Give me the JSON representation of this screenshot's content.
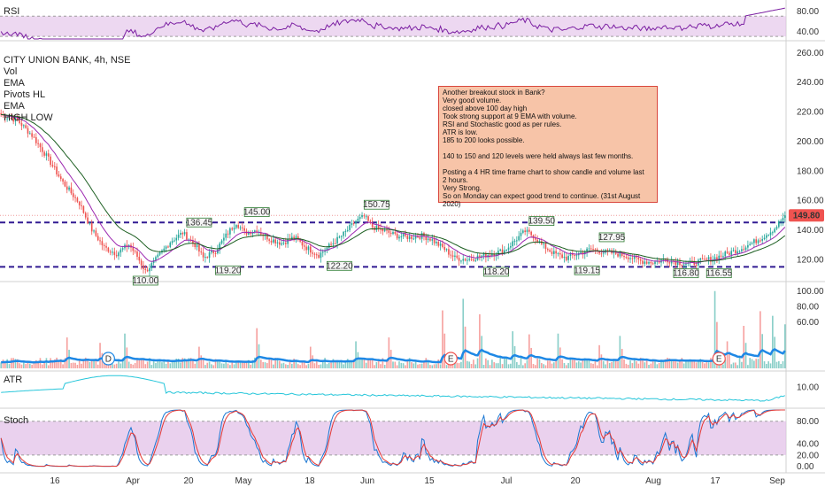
{
  "colors": {
    "up": "#26a69a",
    "down": "#ef5350",
    "ema_fast": "#9c27b0",
    "ema_slow": "#1b5e20",
    "level_line": "#311b92",
    "rsi": "#7b1fa2",
    "band": "#e1bee7",
    "atr": "#26c6da",
    "stoch_k": "#1976d2",
    "stoch_d": "#e53935",
    "vol_ma": "#1e88e5",
    "label_bg": "#f5f5f5",
    "last_price_bg": "#ef5350",
    "annot_bg": "#f7c4a8",
    "annot_border": "#d9473d"
  },
  "legend": {
    "title": "CITY UNION BANK, 4h, NSE",
    "indicators": [
      "Vol",
      "EMA",
      "Pivots HL",
      "EMA",
      "HIGH LOW"
    ]
  },
  "panes": {
    "rsi": {
      "label": "RSI",
      "ticks": [
        "80.00",
        "40.00"
      ]
    },
    "atr": {
      "label": "ATR",
      "ticks": [
        "10.00"
      ]
    },
    "stoch": {
      "label": "Stoch",
      "ticks": [
        "80.00",
        "40.00",
        "20.00",
        "0.00"
      ]
    }
  },
  "price_ticks": [
    "260.00",
    "240.00",
    "220.00",
    "200.00",
    "180.00",
    "160.00",
    "140.00",
    "120.00"
  ],
  "volume_ticks": [
    "100.00",
    "80.00",
    "60.00"
  ],
  "last_price": "149.80",
  "x_labels": [
    "16",
    "Apr",
    "20",
    "May",
    "18",
    "Jun",
    "15",
    "Jul",
    "20",
    "Aug",
    "17",
    "Sep"
  ],
  "annotation": {
    "lines": [
      "Another breakout stock in Bank?",
      "Very good volume.",
      "closed above 100 day high",
      "Took strong support at 9 EMA with volume.",
      "RSI and Stochastic good as per rules.",
      "ATR is low.",
      "185 to 200 looks possible.",
      "",
      "140 to 150 and 120 levels were held always last few months.",
      "",
      "Posting a 4 HR time frame chart to show candle and volume last",
      "2 hours.",
      "Very Strong.",
      "So on Monday can expect good trend to continue. (31st August",
      "2020)"
    ]
  },
  "event_markers": [
    "D",
    "E",
    "E"
  ],
  "chart_data": {
    "type": "candlestick",
    "levels": [
      145,
      115
    ],
    "price_range": [
      105,
      268
    ],
    "pivot_labels": [
      {
        "text": "110.00",
        "date": "late Mar"
      },
      {
        "text": "136.45",
        "date": "mid Apr"
      },
      {
        "text": "119.20",
        "date": "late Apr"
      },
      {
        "text": "145.00",
        "date": "early May"
      },
      {
        "text": "122.20",
        "date": "late May"
      },
      {
        "text": "150.75",
        "date": "early Jun"
      },
      {
        "text": "118.20",
        "date": "late Jun"
      },
      {
        "text": "139.50",
        "date": "mid Jul"
      },
      {
        "text": "119.15",
        "date": "late Jul"
      },
      {
        "text": "127.95",
        "date": "early Aug"
      },
      {
        "text": "116.80",
        "date": "mid Aug"
      },
      {
        "text": "116.55",
        "date": "late Aug"
      }
    ],
    "price_path": [
      [
        0,
        218
      ],
      [
        8,
        214
      ],
      [
        15,
        204
      ],
      [
        22,
        190
      ],
      [
        30,
        172
      ],
      [
        38,
        158
      ],
      [
        44,
        140
      ],
      [
        50,
        128
      ],
      [
        56,
        124
      ],
      [
        62,
        130
      ],
      [
        66,
        122
      ],
      [
        70,
        112
      ],
      [
        74,
        118
      ],
      [
        82,
        132
      ],
      [
        88,
        138
      ],
      [
        94,
        130
      ],
      [
        98,
        121
      ],
      [
        104,
        126
      ],
      [
        110,
        138
      ],
      [
        114,
        145
      ],
      [
        118,
        138
      ],
      [
        124,
        140
      ],
      [
        130,
        134
      ],
      [
        136,
        131
      ],
      [
        142,
        135
      ],
      [
        148,
        128
      ],
      [
        154,
        123
      ],
      [
        160,
        130
      ],
      [
        166,
        137
      ],
      [
        172,
        146
      ],
      [
        176,
        149
      ],
      [
        180,
        142
      ],
      [
        186,
        139
      ],
      [
        192,
        136
      ],
      [
        198,
        135
      ],
      [
        204,
        136
      ],
      [
        208,
        134
      ],
      [
        214,
        128
      ],
      [
        220,
        121
      ],
      [
        226,
        120
      ],
      [
        232,
        122
      ],
      [
        238,
        124
      ],
      [
        244,
        126
      ],
      [
        250,
        134
      ],
      [
        254,
        139
      ],
      [
        258,
        136
      ],
      [
        262,
        130
      ],
      [
        268,
        124
      ],
      [
        274,
        121
      ],
      [
        280,
        124
      ],
      [
        286,
        127
      ],
      [
        292,
        125
      ],
      [
        298,
        124
      ],
      [
        304,
        122
      ],
      [
        310,
        119
      ],
      [
        316,
        118
      ],
      [
        322,
        120
      ],
      [
        328,
        118
      ],
      [
        334,
        117
      ],
      [
        340,
        119
      ],
      [
        346,
        121
      ],
      [
        352,
        124
      ],
      [
        358,
        127
      ],
      [
        364,
        131
      ],
      [
        370,
        136
      ],
      [
        375,
        141
      ],
      [
        380,
        149.8
      ]
    ],
    "volume_spikes": [
      [
        32,
        40
      ],
      [
        48,
        33
      ],
      [
        60,
        45
      ],
      [
        96,
        28
      ],
      [
        124,
        52
      ],
      [
        150,
        28
      ],
      [
        172,
        35
      ],
      [
        188,
        40
      ],
      [
        214,
        75
      ],
      [
        224,
        90
      ],
      [
        232,
        70
      ],
      [
        248,
        48
      ],
      [
        256,
        44
      ],
      [
        270,
        45
      ],
      [
        290,
        30
      ],
      [
        300,
        42
      ],
      [
        346,
        100
      ],
      [
        352,
        35
      ],
      [
        360,
        55
      ],
      [
        368,
        74
      ],
      [
        374,
        68
      ],
      [
        380,
        95
      ]
    ]
  }
}
